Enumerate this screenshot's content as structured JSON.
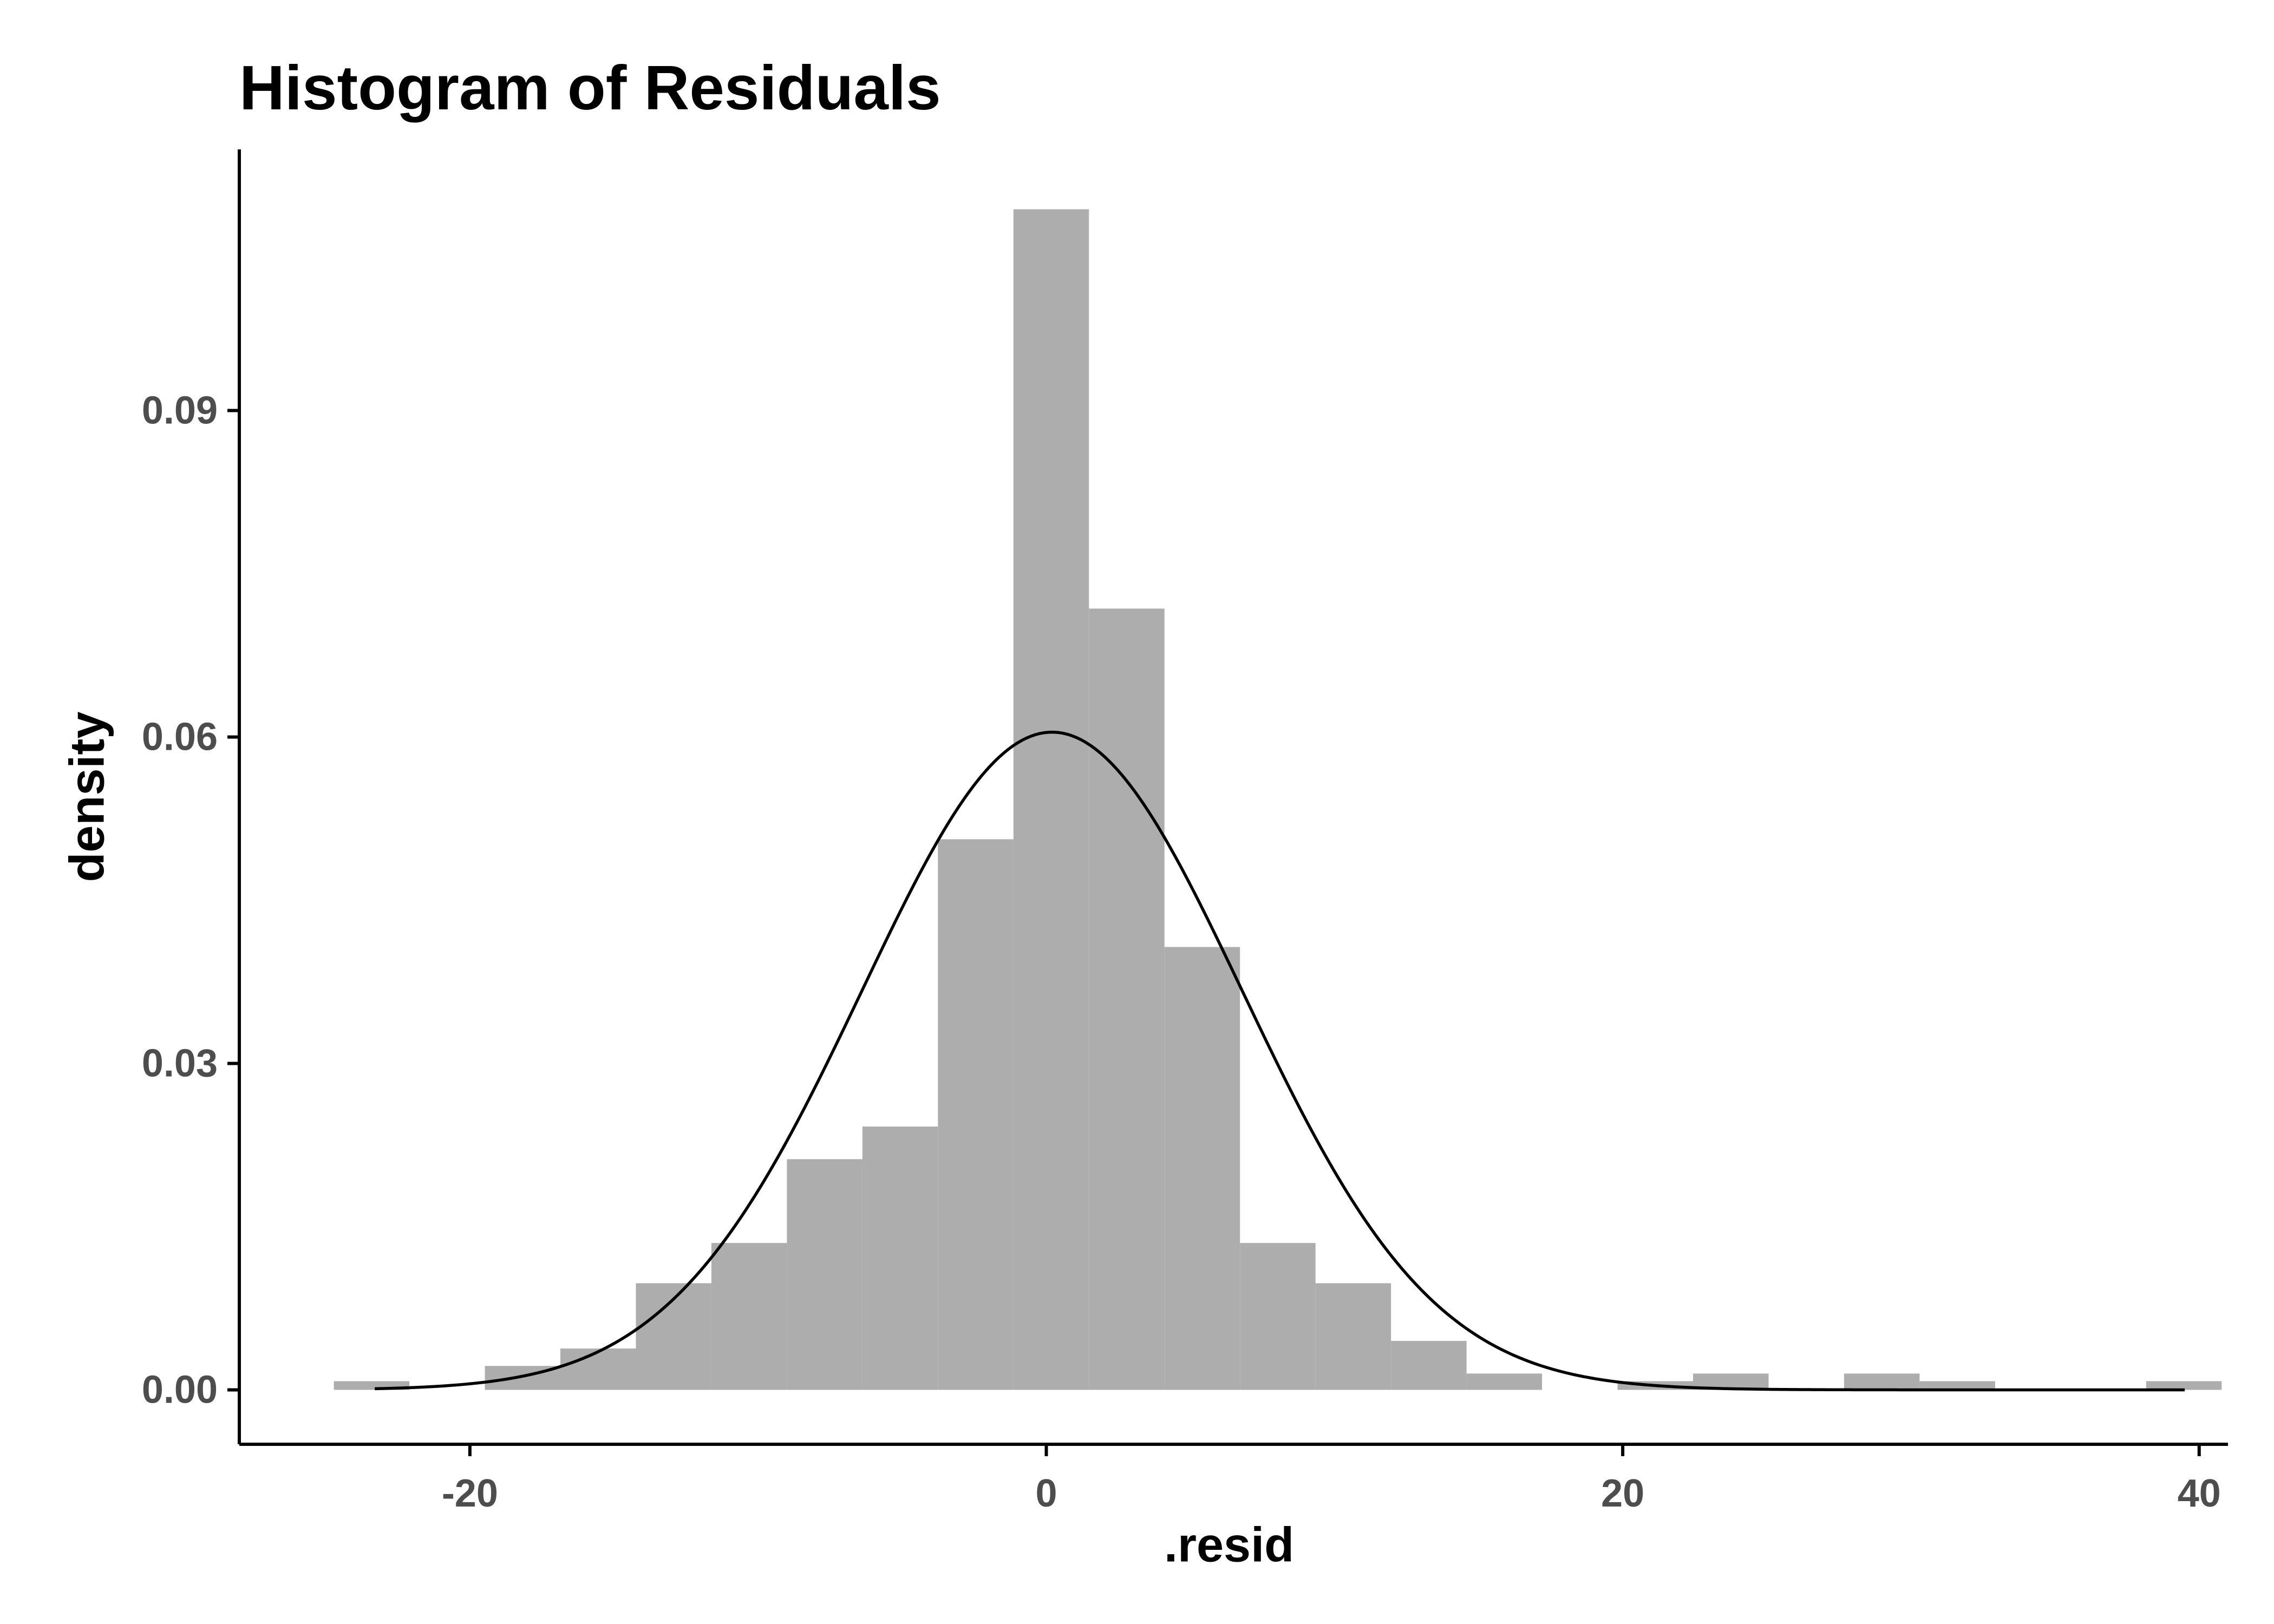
{
  "chart_data": {
    "type": "bar",
    "title": "Histogram of Residuals",
    "xlabel": ".resid",
    "ylabel": "density",
    "xlim": [
      -28,
      41
    ],
    "ylim": [
      -0.005,
      0.114
    ],
    "x_ticks": [
      -20,
      0,
      20,
      40
    ],
    "x_tick_labels": [
      "-20",
      "0",
      "20",
      "40"
    ],
    "y_ticks": [
      0,
      0.03,
      0.06,
      0.09
    ],
    "y_tick_labels": [
      "0.00",
      "0.03",
      "0.06",
      "0.09"
    ],
    "grid": false,
    "series": [
      {
        "type": "histogram",
        "bin_width": 2.62,
        "bin_starts": [
          -24.72,
          -22.1,
          -19.48,
          -16.86,
          -14.24,
          -11.62,
          -9.0,
          -6.38,
          -3.76,
          -1.14,
          1.48,
          4.1,
          6.72,
          9.34,
          11.96,
          14.58,
          17.2,
          19.82,
          22.44,
          25.06,
          27.68,
          30.3,
          32.92,
          35.54,
          38.16
        ],
        "values": [
          0.0008,
          0.0,
          0.0022,
          0.0038,
          0.0098,
          0.0135,
          0.0212,
          0.0242,
          0.0506,
          0.1085,
          0.0718,
          0.0407,
          0.0135,
          0.0098,
          0.0045,
          0.0015,
          0.0,
          0.0008,
          0.0015,
          0.0,
          0.0015,
          0.0008,
          0.0,
          0.0,
          0.0008
        ],
        "color": "#adadad"
      },
      {
        "type": "line",
        "description": "normal density curve",
        "mean": 0.2,
        "sd": 6.6,
        "x_range": [
          -23.3,
          39.5
        ],
        "color": "#000000"
      }
    ]
  },
  "colors": {
    "bar_fill": "#adadad",
    "curve": "#000000",
    "axis": "#000000",
    "tick_label": "#4d4d4d"
  }
}
